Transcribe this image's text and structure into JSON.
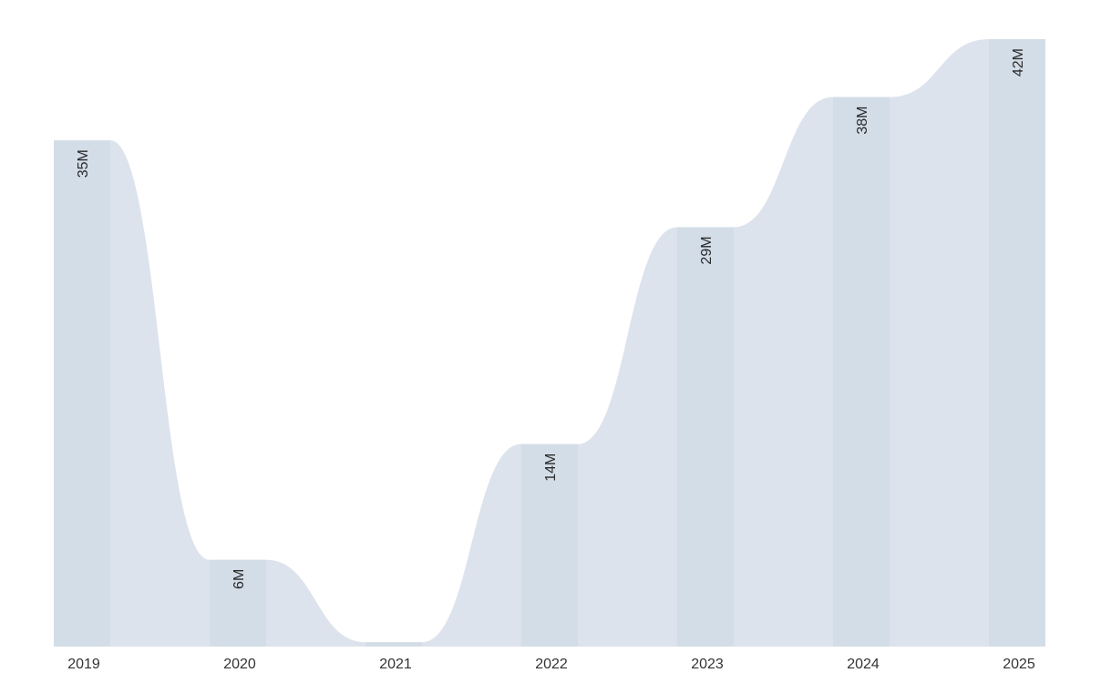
{
  "chart_data": {
    "type": "bar",
    "style": "stepped-area",
    "title": "",
    "xlabel": "",
    "ylabel": "",
    "categories": [
      "2019",
      "2020",
      "2021",
      "2022",
      "2023",
      "2024",
      "2025"
    ],
    "values": [
      35,
      6,
      0.3,
      14,
      29,
      38,
      42
    ],
    "value_labels": [
      "35M",
      "6M",
      "",
      "14M",
      "29M",
      "38M",
      "42M"
    ],
    "ylim": [
      0,
      42
    ],
    "grid": false,
    "legend": "none",
    "colors": {
      "area": "#dce3ec",
      "bar": "#d3dde8",
      "text": "#333333"
    }
  }
}
